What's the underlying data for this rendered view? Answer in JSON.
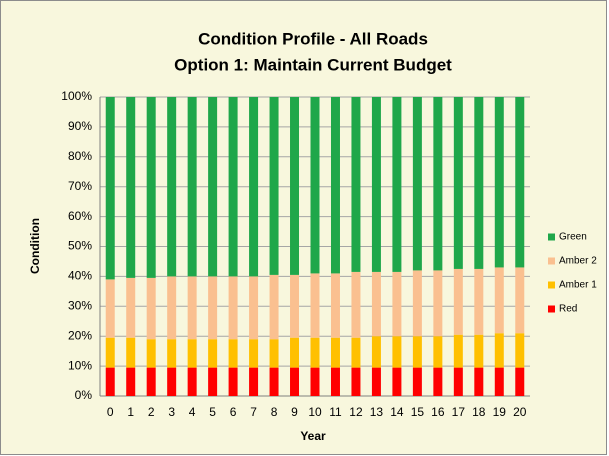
{
  "chart_data": {
    "type": "stacked_bar",
    "title": "Condition Profile - All Roads",
    "subtitle": "Option 1: Maintain Current Budget",
    "x_label": "Year",
    "y_label": "Condition",
    "categories": [
      "0",
      "1",
      "2",
      "3",
      "4",
      "5",
      "6",
      "7",
      "8",
      "9",
      "10",
      "11",
      "12",
      "13",
      "14",
      "15",
      "16",
      "17",
      "18",
      "19",
      "20"
    ],
    "series": [
      {
        "name": "Red",
        "color": "#ff0000",
        "values": [
          9.5,
          9.5,
          9.5,
          9.5,
          9.5,
          9.5,
          9.5,
          9.5,
          9.5,
          9.5,
          9.5,
          9.5,
          9.5,
          9.5,
          9.5,
          9.5,
          9.5,
          9.5,
          9.5,
          9.5,
          9.5
        ]
      },
      {
        "name": "Amber 1",
        "color": "#ffc000",
        "values": [
          10,
          10,
          9.5,
          9.5,
          9.5,
          9.5,
          9.5,
          9.5,
          9.5,
          10,
          10,
          10,
          10,
          10.5,
          10.5,
          10.5,
          10.5,
          11,
          11,
          11.5,
          11.5
        ]
      },
      {
        "name": "Amber 2",
        "color": "#fac090",
        "values": [
          19.5,
          20,
          20.5,
          21,
          21,
          21,
          21,
          21,
          21.5,
          21,
          21.5,
          21.5,
          22,
          21.5,
          21.5,
          22,
          22,
          22,
          22,
          22,
          22
        ]
      },
      {
        "name": "Green",
        "color": "#1fa74a",
        "values": [
          61,
          60.5,
          60.5,
          60,
          60,
          60,
          60,
          60,
          59.5,
          59.5,
          59,
          59,
          58.5,
          58.5,
          58.5,
          58,
          58,
          57.5,
          57.5,
          57,
          57
        ]
      }
    ],
    "ylim": [
      0,
      100
    ],
    "yticks": [
      {
        "value": 0,
        "label": "0%"
      },
      {
        "value": 10,
        "label": "10%"
      },
      {
        "value": 20,
        "label": "20%"
      },
      {
        "value": 30,
        "label": "30%"
      },
      {
        "value": 40,
        "label": "40%"
      },
      {
        "value": 50,
        "label": "50%"
      },
      {
        "value": 60,
        "label": "60%"
      },
      {
        "value": 70,
        "label": "70%"
      },
      {
        "value": 80,
        "label": "80%"
      },
      {
        "value": 90,
        "label": "90%"
      },
      {
        "value": 100,
        "label": "100%"
      }
    ],
    "grid": true,
    "legend": "right"
  }
}
